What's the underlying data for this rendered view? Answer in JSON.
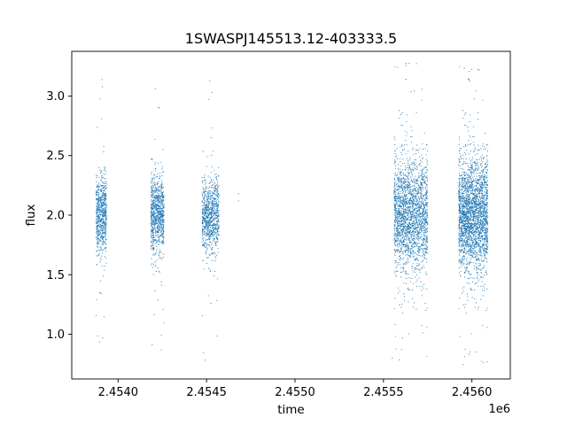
{
  "chart_data": {
    "type": "scatter",
    "title": "1SWASPJ145513.12-403333.5",
    "xlabel": "time",
    "ylabel": "flux",
    "x_offset_label": "1e6",
    "xlim": [
      2453738,
      2456217
    ],
    "ylim": [
      0.625,
      3.375
    ],
    "x_ticks": [
      2454000,
      2454500,
      2455000,
      2455500,
      2456000
    ],
    "x_tick_labels": [
      "2.4540",
      "2.4545",
      "2.4550",
      "2.4555",
      "2.4560"
    ],
    "y_ticks": [
      1.0,
      1.5,
      2.0,
      2.5,
      3.0
    ],
    "y_tick_labels": [
      "1.0",
      "1.5",
      "2.0",
      "2.5",
      "3.0"
    ],
    "grid": false,
    "marker_color": "#1f77b4",
    "series": [
      {
        "x_ranges": [
          [
            2453875,
            2453935
          ],
          [
            2454185,
            2454260
          ],
          [
            2454475,
            2454570
          ],
          [
            2455560,
            2455750
          ],
          [
            2455925,
            2456090
          ]
        ],
        "center": 2.0,
        "typical_spread": [
          [
            1.7,
            2.35
          ],
          [
            1.75,
            2.35
          ],
          [
            1.75,
            2.35
          ],
          [
            1.55,
            2.45
          ],
          [
            1.55,
            2.45
          ]
        ],
        "full_range": [
          [
            0.8,
            3.2
          ],
          [
            0.85,
            3.12
          ],
          [
            0.78,
            3.15
          ],
          [
            0.77,
            3.3
          ],
          [
            0.73,
            3.25
          ]
        ],
        "isolated_points": [
          {
            "x": 2454680,
            "y": 2.18
          },
          {
            "x": 2454680,
            "y": 2.12
          },
          {
            "x": 2455550,
            "y": 0.8
          }
        ]
      }
    ]
  }
}
